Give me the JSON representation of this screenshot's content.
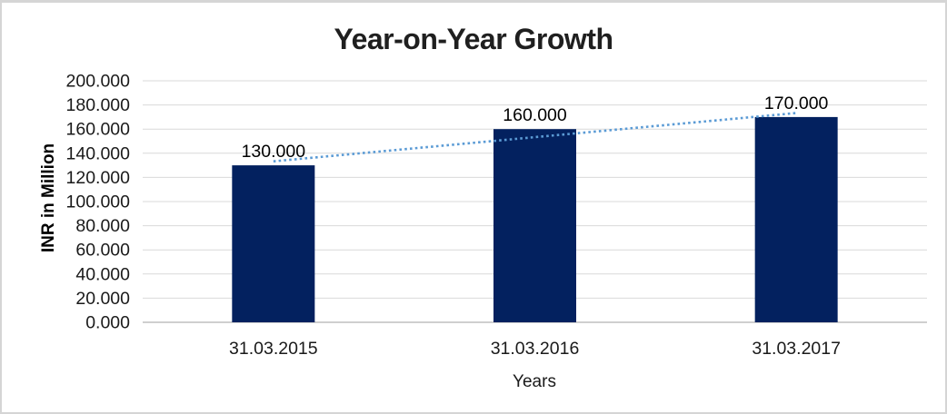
{
  "chart_data": {
    "type": "bar",
    "title": "Year-on-Year Growth",
    "categories": [
      "31.03.2015",
      "31.03.2016",
      "31.03.2017"
    ],
    "values": [
      130.0,
      160.0,
      170.0
    ],
    "data_labels": [
      "130.000",
      "160.000",
      "170.000"
    ],
    "xlabel": "Years",
    "ylabel": "INR in Million",
    "ylim": [
      0,
      200
    ],
    "ytick_step": 20,
    "ytick_labels": [
      "0.000",
      "20.000",
      "40.000",
      "60.000",
      "80.000",
      "100.000",
      "120.000",
      "140.000",
      "160.000",
      "180.000",
      "200.000"
    ],
    "grid": true,
    "legend": "none",
    "trendline": {
      "type": "linear",
      "stroke_style": "dotted",
      "color": "#5B9BD5"
    },
    "colors": {
      "bar": "#03215F",
      "gridline": "#D9D9D9",
      "axis_line": "#BFBFBF",
      "text": "#000000",
      "tick_text": "#1A1A1A",
      "title": "#1F1F1F",
      "trend": "#5B9BD5",
      "background": "#FFFFFF",
      "border": "#D5D5D5"
    }
  }
}
